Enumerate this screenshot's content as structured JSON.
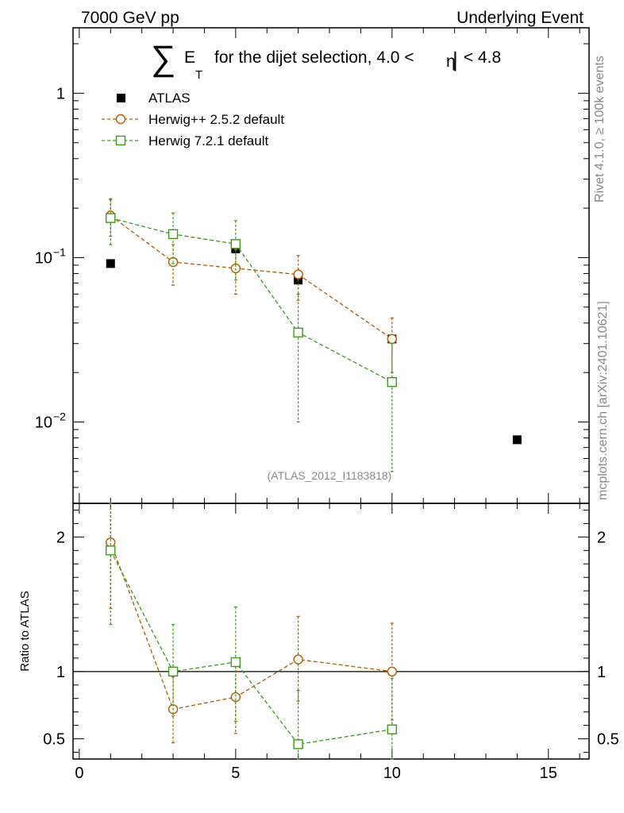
{
  "header": {
    "left": "7000 GeV pp",
    "right": "Underlying Event"
  },
  "title": {
    "sum_symbol": "∑",
    "var": "E",
    "sub": "T",
    "text": "for the dijet selection, 4.0 <",
    "eta": "η",
    "bar": "|",
    "text2": " < 4.8"
  },
  "side_text": {
    "rivet": "Rivet 4.1.0, ≥ 100k events",
    "mcplots": "mcplots.cern.ch [arXiv:2401.10621]"
  },
  "analysis_id": "(ATLAS_2012_I1183818)",
  "ratio_ylabel": "Ratio to ATLAS",
  "legend": {
    "atlas": "ATLAS",
    "herwig252": "Herwig++ 2.5.2 default",
    "herwig721": "Herwig 7.2.1 default"
  },
  "colors": {
    "atlas": "#000000",
    "herwig252": "#b35900",
    "herwig721": "#3a9a1a",
    "gray": "#888888"
  },
  "chart_data": [
    {
      "type": "scatter",
      "scale": "log",
      "xlim": [
        -0.2,
        16.3
      ],
      "ylim": [
        0.0032,
        2.5
      ],
      "y_ticks": [
        {
          "value": 1,
          "label": "1"
        },
        {
          "value": 0.1,
          "label": "10",
          "sup": "−1"
        },
        {
          "value": 0.01,
          "label": "10",
          "sup": "−2"
        }
      ],
      "series": [
        {
          "name": "ATLAS",
          "key": "atlas",
          "marker": "filled-square",
          "points": [
            {
              "x": 1,
              "y": 0.092
            },
            {
              "x": 3,
              "y": 0.139
            },
            {
              "x": 5,
              "y": 0.113
            },
            {
              "x": 7,
              "y": 0.073
            },
            {
              "x": 10,
              "y": 0.032
            },
            {
              "x": 14,
              "y": 0.0078
            }
          ]
        },
        {
          "name": "Herwig++ 2.5.2 default",
          "key": "herwig252",
          "marker": "circle",
          "points": [
            {
              "x": 1,
              "y": 0.18,
              "lo": 0.135,
              "hi": 0.225
            },
            {
              "x": 3,
              "y": 0.094,
              "lo": 0.068,
              "hi": 0.12
            },
            {
              "x": 5,
              "y": 0.086,
              "lo": 0.06,
              "hi": 0.112
            },
            {
              "x": 7,
              "y": 0.079,
              "lo": 0.055,
              "hi": 0.103
            },
            {
              "x": 10,
              "y": 0.032,
              "lo": 0.02,
              "hi": 0.043
            }
          ]
        },
        {
          "name": "Herwig 7.2.1 default",
          "key": "herwig721",
          "marker": "square",
          "points": [
            {
              "x": 1,
              "y": 0.174,
              "lo": 0.12,
              "hi": 0.228
            },
            {
              "x": 3,
              "y": 0.139,
              "lo": 0.092,
              "hi": 0.187
            },
            {
              "x": 5,
              "y": 0.121,
              "lo": 0.073,
              "hi": 0.168
            },
            {
              "x": 7,
              "y": 0.035,
              "lo": 0.01,
              "hi": 0.06
            },
            {
              "x": 10,
              "y": 0.0175,
              "lo": 0.005,
              "hi": 0.03
            }
          ]
        }
      ]
    },
    {
      "type": "scatter",
      "scale": "linear",
      "xlim": [
        -0.2,
        16.3
      ],
      "ylim": [
        0.35,
        2.25
      ],
      "ylabel": "Ratio to ATLAS",
      "reference_line": 1,
      "x_ticks": [
        {
          "value": 0,
          "label": "0"
        },
        {
          "value": 5,
          "label": "5"
        },
        {
          "value": 10,
          "label": "10"
        },
        {
          "value": 15,
          "label": "15"
        }
      ],
      "y_ticks": [
        {
          "value": 0.5,
          "label": "0.5"
        },
        {
          "value": 1,
          "label": "1"
        },
        {
          "value": 2,
          "label": "2"
        }
      ],
      "series": [
        {
          "name": "Herwig++ 2.5.2 default",
          "key": "herwig252",
          "marker": "circle",
          "points": [
            {
              "x": 1,
              "y": 1.96,
              "lo": 1.47,
              "hi": 2.45
            },
            {
              "x": 3,
              "y": 0.72,
              "lo": 0.47,
              "hi": 0.96
            },
            {
              "x": 5,
              "y": 0.81,
              "lo": 0.54,
              "hi": 1.07
            },
            {
              "x": 7,
              "y": 1.09,
              "lo": 0.78,
              "hi": 1.41
            },
            {
              "x": 10,
              "y": 1.0,
              "lo": 0.64,
              "hi": 1.36
            }
          ]
        },
        {
          "name": "Herwig 7.2.1 default",
          "key": "herwig721",
          "marker": "square",
          "points": [
            {
              "x": 1,
              "y": 1.9,
              "lo": 1.35,
              "hi": 2.45
            },
            {
              "x": 3,
              "y": 1.0,
              "lo": 0.67,
              "hi": 1.35
            },
            {
              "x": 5,
              "y": 1.07,
              "lo": 0.63,
              "hi": 1.48
            },
            {
              "x": 7,
              "y": 0.46,
              "lo": 0.2,
              "hi": 0.86
            },
            {
              "x": 10,
              "y": 0.57,
              "lo": 0.2,
              "hi": 0.95
            }
          ]
        }
      ]
    }
  ]
}
